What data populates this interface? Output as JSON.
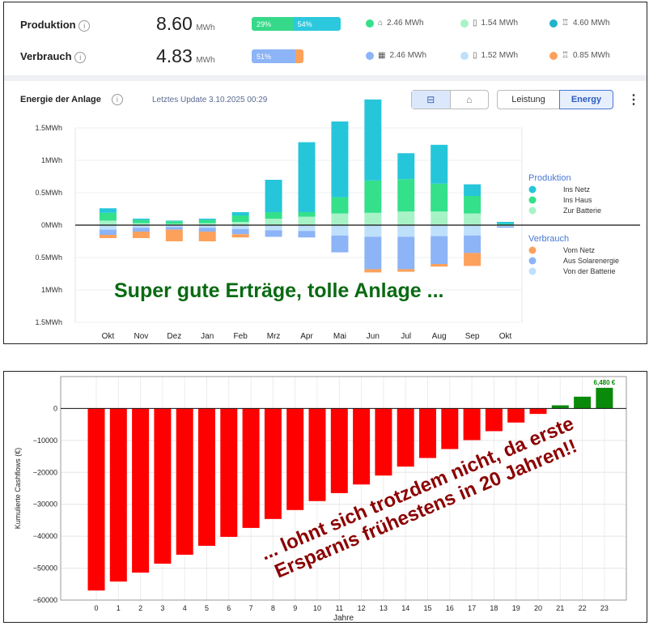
{
  "summary": {
    "production": {
      "label": "Produktion",
      "value": "8.60",
      "unit": "MWh",
      "pct_a": "29%",
      "pct_b": "54%",
      "stats": [
        "2.46 MWh",
        "1.54 MWh",
        "4.60 MWh"
      ]
    },
    "consumption": {
      "label": "Verbrauch",
      "value": "4.83",
      "unit": "MWh",
      "pct_a": "51%",
      "stats": [
        "2.46 MWh",
        "1.52 MWh",
        "0.85 MWh"
      ]
    }
  },
  "panel": {
    "title": "Energie der Anlage",
    "update": "Letztes Update 3.10.2025 00:29",
    "toggle_leistung": "Leistung",
    "toggle_energy": "Energy",
    "more": "⋮"
  },
  "colors": {
    "ins_netz": "#26c6da",
    "ins_haus": "#34e08a",
    "zur_batterie": "#a7f3c7",
    "vom_netz": "#fca15c",
    "aus_solar": "#8cb4f6",
    "von_batterie": "#bfe0fb",
    "red": "#ff0000",
    "green": "#0a8a0a"
  },
  "chart_data": [
    {
      "type": "bar",
      "categories": [
        "Okt",
        "Nov",
        "Dez",
        "Jan",
        "Feb",
        "Mrz",
        "Apr",
        "Mai",
        "Jun",
        "Jul",
        "Aug",
        "Sep",
        "Okt"
      ],
      "yticks": [
        "1.5MWh",
        "1MWh",
        "0.5MWh",
        "0MWh",
        "0.5MWh",
        "1MWh",
        "1.5MWh"
      ],
      "ylim": [
        -1.5,
        1.5
      ],
      "legend_production_title": "Produktion",
      "legend_consumption_title": "Verbrauch",
      "series": [
        {
          "name": "Ins Netz",
          "group": "Produktion",
          "values": [
            0.07,
            0.02,
            0.01,
            0.02,
            0.05,
            0.5,
            1.08,
            1.17,
            1.25,
            0.4,
            0.6,
            0.18,
            0.03
          ]
        },
        {
          "name": "Ins Haus",
          "group": "Produktion",
          "values": [
            0.12,
            0.05,
            0.04,
            0.05,
            0.1,
            0.1,
            0.07,
            0.25,
            0.5,
            0.5,
            0.43,
            0.27,
            0.02
          ]
        },
        {
          "name": "Zur Batterie",
          "group": "Produktion",
          "values": [
            0.07,
            0.03,
            0.02,
            0.03,
            0.05,
            0.1,
            0.13,
            0.18,
            0.19,
            0.21,
            0.21,
            0.18,
            0.0
          ]
        },
        {
          "name": "Vom Netz",
          "group": "Verbrauch",
          "values": [
            0.05,
            0.1,
            0.18,
            0.15,
            0.05,
            0.0,
            0.0,
            0.0,
            0.05,
            0.04,
            0.04,
            0.2,
            0.0
          ]
        },
        {
          "name": "Aus Solarenergie",
          "group": "Verbrauch",
          "values": [
            0.08,
            0.06,
            0.04,
            0.06,
            0.08,
            0.1,
            0.1,
            0.26,
            0.5,
            0.5,
            0.43,
            0.27,
            0.02
          ]
        },
        {
          "name": "Von der Batterie",
          "group": "Verbrauch",
          "values": [
            0.07,
            0.04,
            0.03,
            0.04,
            0.06,
            0.08,
            0.09,
            0.16,
            0.18,
            0.18,
            0.17,
            0.16,
            0.02
          ]
        }
      ]
    },
    {
      "type": "bar",
      "categories": [
        "0",
        "1",
        "2",
        "3",
        "4",
        "5",
        "6",
        "7",
        "8",
        "9",
        "10",
        "11",
        "12",
        "13",
        "14",
        "15",
        "16",
        "17",
        "18",
        "19",
        "20",
        "21",
        "22",
        "23"
      ],
      "values": [
        -57000,
        -54200,
        -51400,
        -48600,
        -45800,
        -43000,
        -40200,
        -37400,
        -34600,
        -31800,
        -29000,
        -26500,
        -23800,
        -21000,
        -18200,
        -15500,
        -12700,
        -9900,
        -7100,
        -4400,
        -1700,
        1000,
        3700,
        6480
      ],
      "xlabel": "Jahre",
      "ylabel": "Kumulierte Cashflows (€)",
      "yticks": [
        "0",
        "−10000",
        "−20000",
        "−30000",
        "−40000",
        "−50000",
        "−60000"
      ],
      "ylim": [
        -60000,
        10000
      ],
      "annotation": "6,480 €"
    }
  ],
  "overlays": {
    "top_caption": "Super gute Erträge, tolle Anlage ...",
    "bottom_line1": "... lohnt sich trotzdem nicht, da erste",
    "bottom_line2": "Ersparnis frühestens in 20 Jahren!!"
  }
}
